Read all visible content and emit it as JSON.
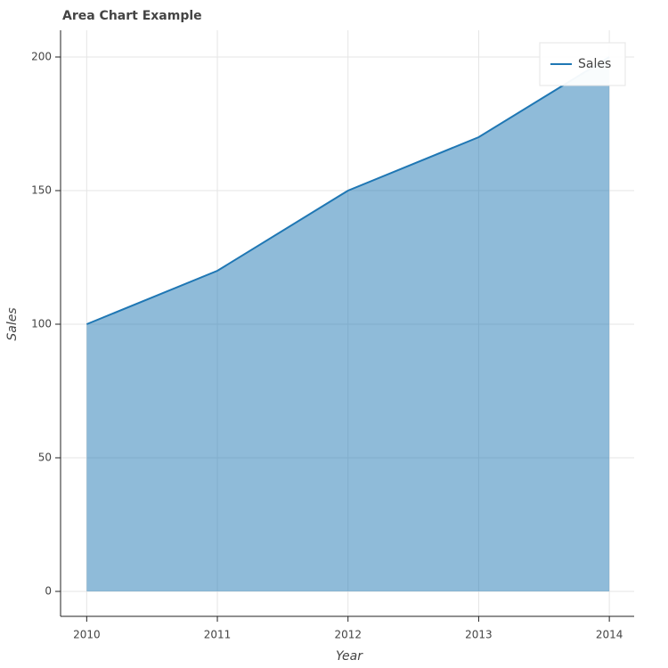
{
  "chart_data": {
    "type": "area",
    "title": "Area Chart Example",
    "x_label": "Year",
    "y_label": "Sales",
    "x": [
      2010,
      2011,
      2012,
      2013,
      2014
    ],
    "series": [
      {
        "name": "Sales",
        "color": "#1f77b4",
        "values": [
          100,
          120,
          150,
          170,
          200
        ]
      }
    ],
    "xlim": [
      2009.8,
      2014.19
    ],
    "xticks": [
      2010,
      2011,
      2012,
      2013,
      2014
    ],
    "ylim": [
      -10,
      210
    ],
    "yticks": [
      0,
      50,
      100,
      150,
      200
    ],
    "grid": true,
    "legend": "top-right"
  }
}
